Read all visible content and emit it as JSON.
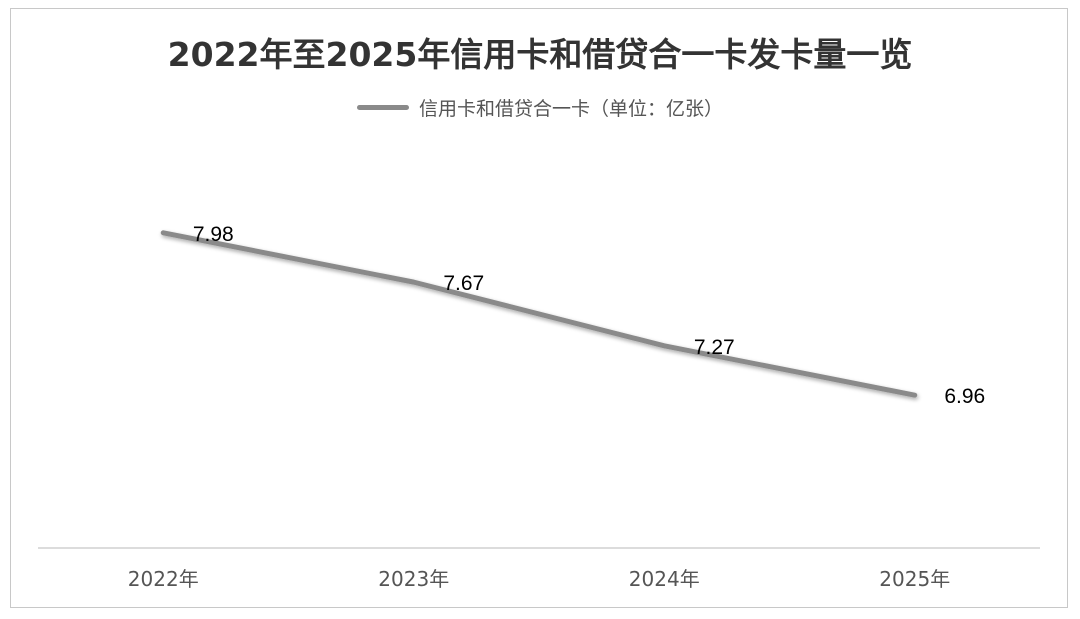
{
  "chart_data": {
    "type": "line",
    "title": "2022年至2025年信用卡和借贷合一卡发卡量一览",
    "categories": [
      "2022年",
      "2023年",
      "2024年",
      "2025年"
    ],
    "series": [
      {
        "name": "信用卡和借贷合一卡（单位：亿张）",
        "values": [
          7.98,
          7.67,
          7.27,
          6.96
        ],
        "color": "#8a8a8a"
      }
    ],
    "ylim": [
      6.0,
      8.5
    ],
    "grid": false,
    "legend": "top-center",
    "data_labels": [
      "7.98",
      "7.67",
      "7.27",
      "6.96"
    ]
  }
}
